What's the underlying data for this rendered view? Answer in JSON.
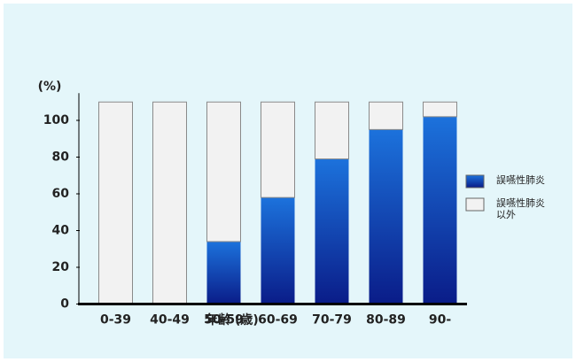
{
  "chart_data": {
    "type": "stacked_bar",
    "y_label": "(%)",
    "x_label": "年齢 (歳)",
    "categories": [
      "0-39",
      "40-49",
      "50-59",
      "60-69",
      "70-79",
      "80-89",
      "90-"
    ],
    "series": [
      {
        "name": "誤嚥性肺炎",
        "color": "#1440b0",
        "values": [
          0,
          0,
          34,
          58,
          79,
          95,
          102
        ]
      },
      {
        "name": "誤嚥性肺炎以外",
        "color": "#f2f2f2",
        "values": [
          110,
          110,
          76,
          52,
          31,
          15,
          8
        ]
      }
    ],
    "ylim": [
      0,
      110
    ],
    "yticks": [
      0,
      20,
      40,
      60,
      80,
      100
    ],
    "legend": "right"
  }
}
